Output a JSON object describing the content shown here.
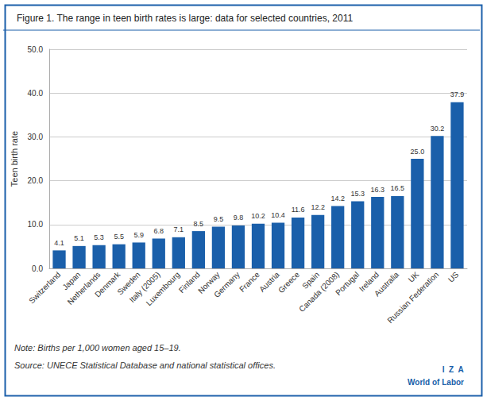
{
  "chart_data": {
    "type": "bar",
    "title": "Figure 1. The range in teen birth rates is large: data for selected countries, 2011",
    "ylabel": "Teen birth rate",
    "categories": [
      "Switzerland",
      "Japan",
      "Netherlands",
      "Denmark",
      "Sweden",
      "Italy (2005)",
      "Luxembourg",
      "Finland",
      "Norway",
      "Germany",
      "France",
      "Austria",
      "Greece",
      "Spain",
      "Canada (2008)",
      "Portugal",
      "Ireland",
      "Australia",
      "UK",
      "Russian Federation",
      "US"
    ],
    "values": [
      4.1,
      5.1,
      5.3,
      5.5,
      5.9,
      6.8,
      7.1,
      8.5,
      9.5,
      9.8,
      10.2,
      10.4,
      11.6,
      12.2,
      14.2,
      15.3,
      16.3,
      16.5,
      25.0,
      30.2,
      37.9
    ],
    "value_labels": [
      "4.1",
      "5.1",
      "5.3",
      "5.5",
      "5.9",
      "6.8",
      "7.1",
      "8.5",
      "9.5",
      "9.8",
      "10.2",
      "10.4",
      "11.6",
      "12.2",
      "14.2",
      "15.3",
      "16.3",
      "16.5",
      "25.0",
      "30.2",
      "37.9"
    ],
    "data_labels": true,
    "color": "#1a5faa",
    "ylim": [
      0,
      50
    ],
    "yticks": [
      {
        "value": 0,
        "label": "0.0"
      },
      {
        "value": 10,
        "label": "10.0"
      },
      {
        "value": 20,
        "label": "20.0"
      },
      {
        "value": 30,
        "label": "30.0"
      },
      {
        "value": 40,
        "label": "40.0"
      },
      {
        "value": 50,
        "label": "50.0"
      }
    ],
    "grid": true,
    "annotations": [
      "Note: Births per 1,000 women aged 15–19.",
      "Source: UNECE Statistical Database and national statistical offices.",
      "I  Z  A",
      "World of Labor"
    ]
  }
}
